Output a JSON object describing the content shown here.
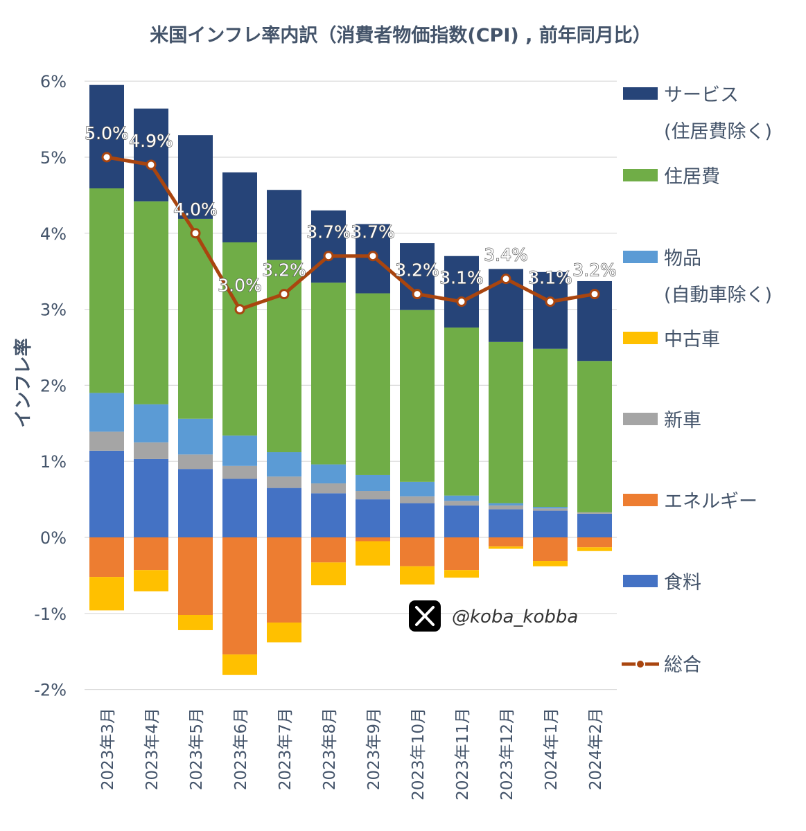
{
  "chart_data": {
    "type": "bar",
    "stacked": true,
    "title": "米国インフレ率内訳（消費者物価指数(CPI) , 前年同月比）",
    "ylabel": "インフレ率",
    "ylim": [
      -2,
      6
    ],
    "yticks": [
      "6%",
      "5%",
      "4%",
      "3%",
      "2%",
      "1%",
      "0%",
      "-1%",
      "-2%"
    ],
    "categories": [
      "2023年3月",
      "2023年4月",
      "2023年5月",
      "2023年6月",
      "2023年7月",
      "2023年8月",
      "2023年9月",
      "2023年10月",
      "2023年11月",
      "2023年12月",
      "2024年1月",
      "2024年2月"
    ],
    "series": [
      {
        "name": "食料",
        "color": "#4472c4",
        "values": [
          1.14,
          1.03,
          0.9,
          0.77,
          0.65,
          0.58,
          0.5,
          0.45,
          0.42,
          0.37,
          0.35,
          0.31
        ]
      },
      {
        "name": "新車",
        "color": "#a5a5a5",
        "values": [
          0.25,
          0.22,
          0.19,
          0.17,
          0.15,
          0.13,
          0.11,
          0.09,
          0.06,
          0.05,
          0.03,
          0.02
        ]
      },
      {
        "name": "物品",
        "name_line2": "(自動車除く)",
        "color": "#5b9bd5",
        "values": [
          0.51,
          0.5,
          0.47,
          0.4,
          0.32,
          0.25,
          0.21,
          0.19,
          0.07,
          0.03,
          0.02,
          0.0
        ]
      },
      {
        "name": "住居費",
        "color": "#70ad47",
        "values": [
          2.69,
          2.67,
          2.63,
          2.54,
          2.53,
          2.39,
          2.39,
          2.26,
          2.21,
          2.12,
          2.08,
          1.99
        ]
      },
      {
        "name": "サービス",
        "name_line2": "(住居費除く)",
        "color": "#264478",
        "values": [
          1.36,
          1.22,
          1.1,
          0.92,
          0.92,
          0.95,
          0.91,
          0.88,
          0.94,
          0.96,
          1.01,
          1.05
        ]
      },
      {
        "name": "エネルギー",
        "color": "#ed7d31",
        "values": [
          -0.52,
          -0.43,
          -1.02,
          -1.54,
          -1.12,
          -0.33,
          -0.05,
          -0.38,
          -0.43,
          -0.12,
          -0.31,
          -0.13
        ]
      },
      {
        "name": "中古車",
        "color": "#ffc000",
        "values": [
          -0.44,
          -0.28,
          -0.2,
          -0.27,
          -0.26,
          -0.3,
          -0.32,
          -0.24,
          -0.1,
          -0.03,
          -0.07,
          -0.05
        ]
      }
    ],
    "line": {
      "name": "総合",
      "color": "#a9450f",
      "values": [
        5.0,
        4.9,
        4.0,
        3.0,
        3.2,
        3.7,
        3.7,
        3.2,
        3.1,
        3.4,
        3.1,
        3.2
      ],
      "labels": [
        "5.0%",
        "4.9%",
        "4.0%",
        "3.0%",
        "3.2%",
        "3.7%",
        "3.7%",
        "3.2%",
        "3.1%",
        "3.4%",
        "3.1%",
        "3.2%"
      ]
    },
    "legend_position": "right",
    "grid": true
  },
  "watermark": {
    "icon": "x-logo-icon",
    "text": "@koba_kobba"
  }
}
